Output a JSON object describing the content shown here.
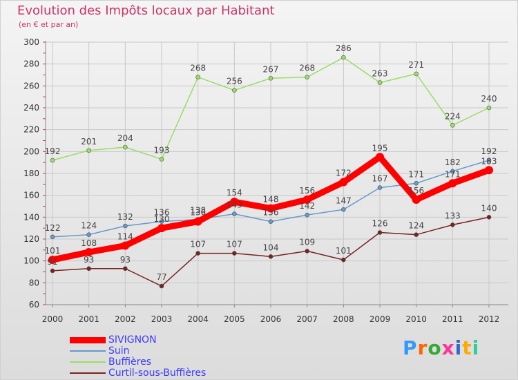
{
  "header": {
    "title": "Evolution des Impôts locaux par Habitant",
    "subtitle": "(en € et par an)"
  },
  "logo": {
    "text": "Proxiti",
    "colors": [
      "#3399ff",
      "#ff6600",
      "#33aa33",
      "#ff3399",
      "#3366cc",
      "#ffaa00",
      "#33cc99"
    ]
  },
  "chart_data": {
    "type": "line",
    "x": [
      2000,
      2001,
      2002,
      2003,
      2004,
      2005,
      2006,
      2007,
      2008,
      2009,
      2010,
      2011,
      2012
    ],
    "ylim": [
      60,
      300
    ],
    "yticks": [
      60,
      80,
      100,
      120,
      140,
      160,
      180,
      200,
      220,
      240,
      260,
      280,
      300
    ],
    "grid": true,
    "legend_position": "bottom-left",
    "series": [
      {
        "name": "SIVIGNON",
        "color": "#ff0000",
        "values": [
          101,
          108,
          114,
          130,
          136,
          154,
          148,
          156,
          172,
          195,
          156,
          171,
          183
        ]
      },
      {
        "name": "Suin",
        "color": "#6699cc",
        "values": [
          122,
          124,
          132,
          136,
          138,
          143,
          136,
          142,
          147,
          167,
          171,
          182,
          192
        ]
      },
      {
        "name": "Buffières",
        "color": "#99dd66",
        "values": [
          192,
          201,
          204,
          193,
          268,
          256,
          267,
          268,
          286,
          263,
          271,
          224,
          240
        ]
      },
      {
        "name": "Curtil-sous-Buffières",
        "color": "#772222",
        "values": [
          91,
          93,
          93,
          77,
          107,
          107,
          104,
          109,
          101,
          126,
          124,
          133,
          140
        ]
      }
    ]
  }
}
